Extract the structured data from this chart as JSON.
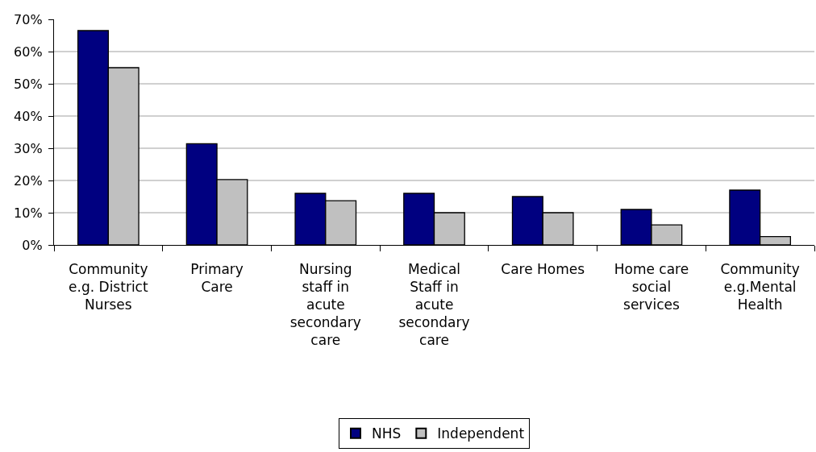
{
  "chart_data": {
    "type": "bar",
    "categories": [
      "Community\ne.g. District\nNurses",
      "Primary\nCare",
      "Nursing\nstaff in\nacute\nsecondary\ncare",
      "Medical\nStaff in\nacute\nsecondary\ncare",
      "Care Homes",
      "Home care\nsocial\nservices",
      "Community\ne.g.Mental\nHealth"
    ],
    "series": [
      {
        "name": "NHS",
        "color": "#000080",
        "values": [
          66.5,
          31.4,
          16,
          16,
          15,
          11,
          17
        ]
      },
      {
        "name": "Independent",
        "color": "#c0c0c0",
        "values": [
          55,
          20.3,
          13.7,
          10,
          10,
          6.2,
          2.6
        ]
      }
    ],
    "ylim": [
      0,
      70
    ],
    "yticks": [
      {
        "value": 0,
        "label": "0%"
      },
      {
        "value": 10,
        "label": "10%"
      },
      {
        "value": 20,
        "label": "20%"
      },
      {
        "value": 30,
        "label": "30%"
      },
      {
        "value": 40,
        "label": "40%"
      },
      {
        "value": 50,
        "label": "50%"
      },
      {
        "value": 60,
        "label": "60%"
      },
      {
        "value": 70,
        "label": "70%"
      }
    ],
    "grid": "y",
    "legend": "bottom"
  }
}
